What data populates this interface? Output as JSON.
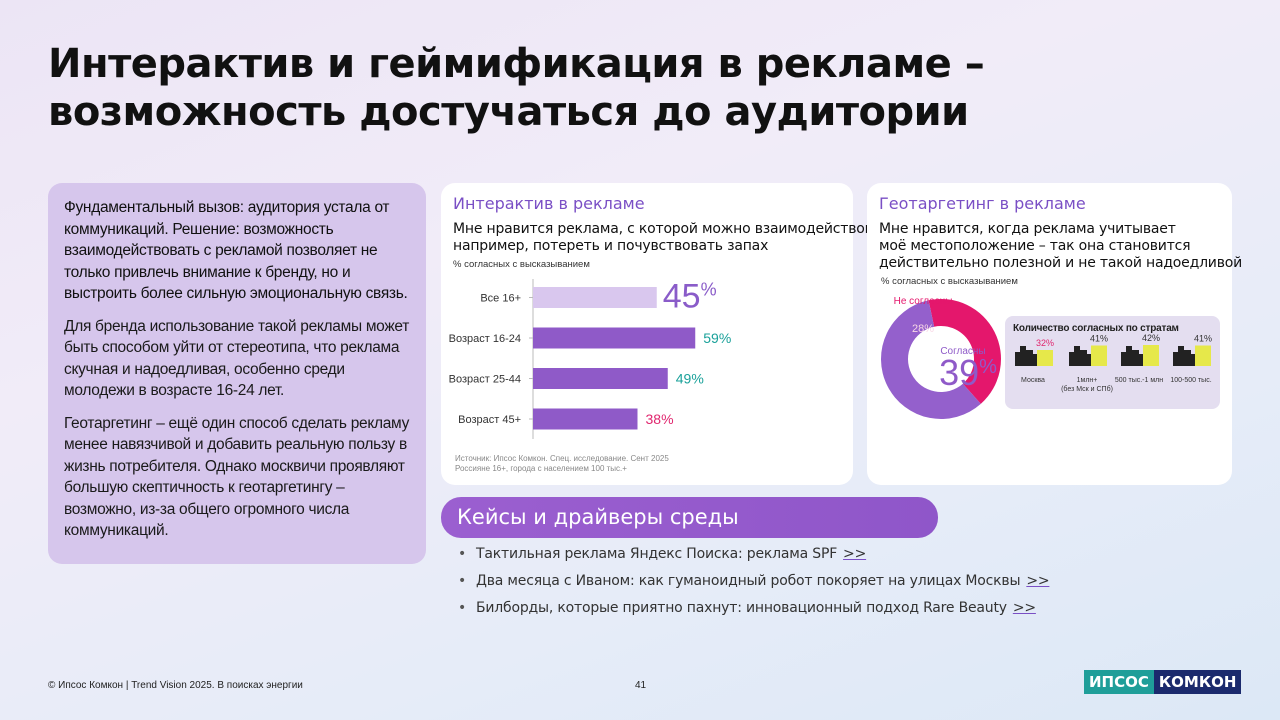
{
  "title": {
    "line1": "Интерактив и геймификация в рекламе –",
    "line2": "возможность достучаться до аудитории"
  },
  "left_panel": {
    "p1": "Фундаментальный вызов: аудитория устала от коммуникаций. Решение: возможность взаимодействовать с рекламой позволяет не только привлечь внимание к бренду, но и выстроить более сильную эмоциональную связь.",
    "p2": "Для бренда использование такой рекламы может быть способом уйти от стереотипа, что реклама скучная и надоедливая, особенно среди молодежи в возрасте 16-24 лет.",
    "p3": "Геотаргетинг – ещё один способ сделать рекламу менее навязчивой и добавить реальную пользу в жизнь потребителя. Однако москвичи проявляют большую скептичность к геотаргетингу – возможно, из-за общего огромного числа коммуникаций."
  },
  "card1": {
    "title": "Интерактив в рекламе",
    "question_line1": "Мне нравится реклама, с которой можно взаимодействовать,",
    "question_line2": "например, потереть и почувствовать запах",
    "sub": "% согласных с высказыванием",
    "source_line1": "Источник: Ипсос Комкон. Спец. исследование. Сент 2025",
    "source_line2": "Россияне 16+, города с населением 100 тыс.+"
  },
  "card2": {
    "title": "Геотаргетинг в рекламе",
    "question_line1": "Мне нравится, когда реклама учитывает",
    "question_line2": "моё местоположение – так она становится",
    "question_line3": "действительно полезной и не такой надоедливой",
    "sub": "% согласных с высказыванием",
    "strata_title": "Количество согласных по стратам"
  },
  "chart_data": [
    {
      "type": "bar",
      "orientation": "horizontal",
      "categories": [
        "Все 16+",
        "Возраст 16-24",
        "Возраст 25-44",
        "Возраст 45+"
      ],
      "values": [
        45,
        59,
        49,
        38
      ],
      "labels": [
        "45%",
        "59%",
        "49%",
        "38%"
      ],
      "colors": [
        "#d9c7ee",
        "#8f5ac8",
        "#8f5ac8",
        "#8f5ac8"
      ],
      "label_colors": [
        "#8a5cc9",
        "#1aa19a",
        "#1aa19a",
        "#e0266e"
      ],
      "xlim": [
        0,
        100
      ],
      "title": "Мне нравится реклама, с которой можно взаимодействовать, например, потереть и почувствовать запах"
    },
    {
      "type": "pie",
      "subtype": "donut",
      "categories": [
        "Не согласны",
        "Согласны"
      ],
      "values": [
        28,
        39
      ],
      "labels": [
        "28%",
        "39%"
      ],
      "colors": [
        "#e4176c",
        "#9460cc"
      ]
    },
    {
      "type": "bar",
      "title": "Количество согласных по стратам",
      "categories": [
        "Москва",
        "1млн+ (без Мск и СПб)",
        "500 тыс.-1 млн",
        "100-500 тыс."
      ],
      "category_lines": [
        [
          "Москва"
        ],
        [
          "1млн+",
          "(без Мск и СПб)"
        ],
        [
          "500 тыс.-1 млн"
        ],
        [
          "100-500 тыс."
        ]
      ],
      "values": [
        32,
        41,
        42,
        41
      ],
      "labels": [
        "32%",
        "41%",
        "42%",
        "41%"
      ],
      "label_colors": [
        "#e0266e",
        "#333333",
        "#333333",
        "#333333"
      ],
      "bar_color": "#e6e84a"
    }
  ],
  "cases": {
    "header": "Кейсы и драйверы среды",
    "items": [
      {
        "text": "Тактильная реклама Яндекс Поиска: реклама SPF",
        "link": ">>"
      },
      {
        "text": "Два месяца с Иваном: как гуманоидный робот покоряет на улицах Москвы",
        "link": ">>"
      },
      {
        "text": "Билборды, которые приятно пахнут: инновационный подход Rare Beauty",
        "link": ">>"
      }
    ]
  },
  "footer": {
    "left": "© Ипсос Комкон | Trend Vision 2025. В поисках энергии",
    "page": "41"
  },
  "logo": {
    "part1": "ИПСОС",
    "part2": "КОМКОН"
  }
}
